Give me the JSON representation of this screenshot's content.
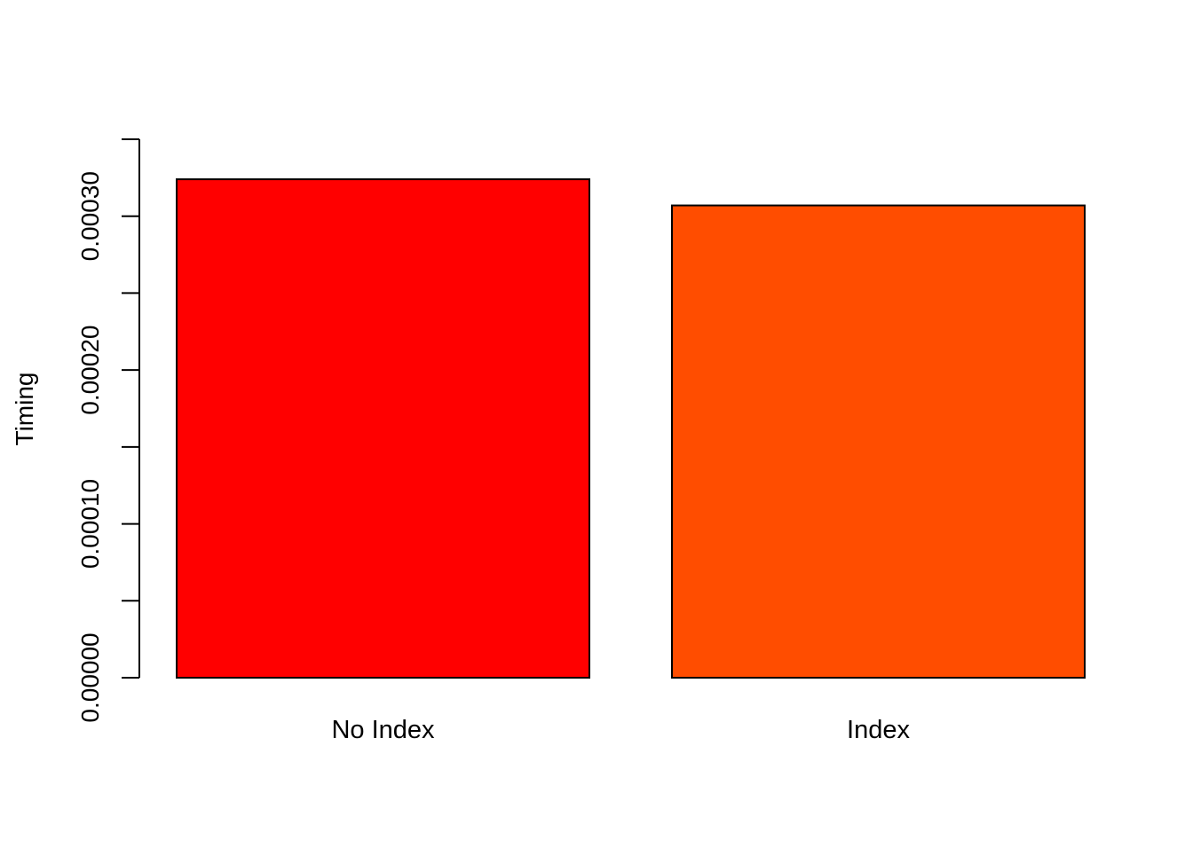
{
  "chart_data": {
    "type": "bar",
    "title": "",
    "xlabel": "",
    "ylabel": "Timing",
    "ylim": [
      0,
      0.00035
    ],
    "y_ticks": [
      {
        "value": 0,
        "label": "0.00000"
      },
      {
        "value": 5e-05,
        "label": ""
      },
      {
        "value": 0.0001,
        "label": "0.00010"
      },
      {
        "value": 0.00015,
        "label": ""
      },
      {
        "value": 0.0002,
        "label": "0.00020"
      },
      {
        "value": 0.00025,
        "label": ""
      },
      {
        "value": 0.0003,
        "label": "0.00030"
      },
      {
        "value": 0.00035,
        "label": ""
      }
    ],
    "categories": [
      "No Index",
      "Index"
    ],
    "values": [
      0.000324,
      0.000307
    ],
    "colors": [
      "#ff0000",
      "#ff4d00"
    ],
    "grid": false,
    "legend": "none"
  }
}
